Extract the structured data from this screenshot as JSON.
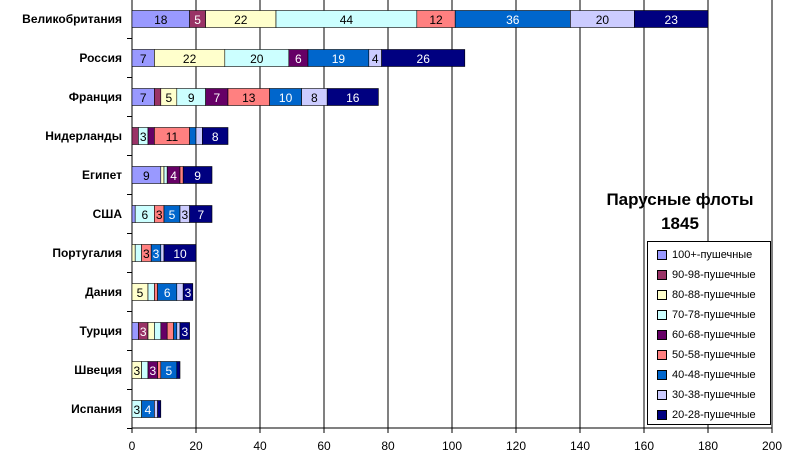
{
  "chart_data": {
    "type": "bar",
    "orientation": "horizontal",
    "stacked": true,
    "title": "Парусные флоты",
    "subtitle": "1845",
    "xlabel": "",
    "ylabel": "",
    "xlim": [
      0,
      200
    ],
    "x_ticks": [
      0,
      20,
      40,
      60,
      80,
      100,
      120,
      140,
      160,
      180,
      200
    ],
    "grid": "vertical",
    "legend_position": "bottom-right",
    "categories": [
      "Великобритания",
      "Россия",
      "Франция",
      "Нидерланды",
      "Египет",
      "США",
      "Португалия",
      "Дания",
      "Турция",
      "Швеция",
      "Испания"
    ],
    "series": [
      {
        "name": "100+-пушечные",
        "color": "#9999FF",
        "text": "#000",
        "values": [
          18,
          7,
          7,
          0,
          9,
          1,
          0,
          0,
          2,
          0,
          0
        ]
      },
      {
        "name": "90-98-пушечные",
        "color": "#993366",
        "text": "#fff",
        "values": [
          5,
          0,
          2,
          2,
          0,
          0,
          0,
          0,
          3,
          0,
          0
        ]
      },
      {
        "name": "80-88-пушечные",
        "color": "#FFFFCC",
        "text": "#000",
        "values": [
          22,
          22,
          5,
          0,
          1,
          0,
          1,
          5,
          2,
          3,
          0
        ]
      },
      {
        "name": "70-78-пушечные",
        "color": "#CCFFFF",
        "text": "#000",
        "values": [
          44,
          20,
          9,
          3,
          1,
          6,
          2,
          2,
          2,
          2,
          3
        ]
      },
      {
        "name": "60-68-пушечные",
        "color": "#660066",
        "text": "#fff",
        "values": [
          0,
          6,
          7,
          2,
          4,
          0,
          0,
          0,
          2,
          3,
          0
        ]
      },
      {
        "name": "50-58-пушечные",
        "color": "#FF8080",
        "text": "#000",
        "values": [
          12,
          0,
          13,
          11,
          1,
          3,
          3,
          1,
          2,
          1,
          0
        ]
      },
      {
        "name": "40-48-пушечные",
        "color": "#0066CC",
        "text": "#fff",
        "values": [
          36,
          19,
          10,
          2,
          0,
          5,
          3,
          6,
          1,
          5,
          4
        ]
      },
      {
        "name": "30-38-пушечные",
        "color": "#CCCCFF",
        "text": "#000",
        "values": [
          20,
          4,
          8,
          2,
          0,
          3,
          1,
          2,
          1,
          0,
          1
        ]
      },
      {
        "name": "20-28-пушечные",
        "color": "#000080",
        "text": "#fff",
        "values": [
          23,
          26,
          16,
          8,
          9,
          7,
          10,
          3,
          3,
          1,
          1
        ]
      }
    ]
  }
}
